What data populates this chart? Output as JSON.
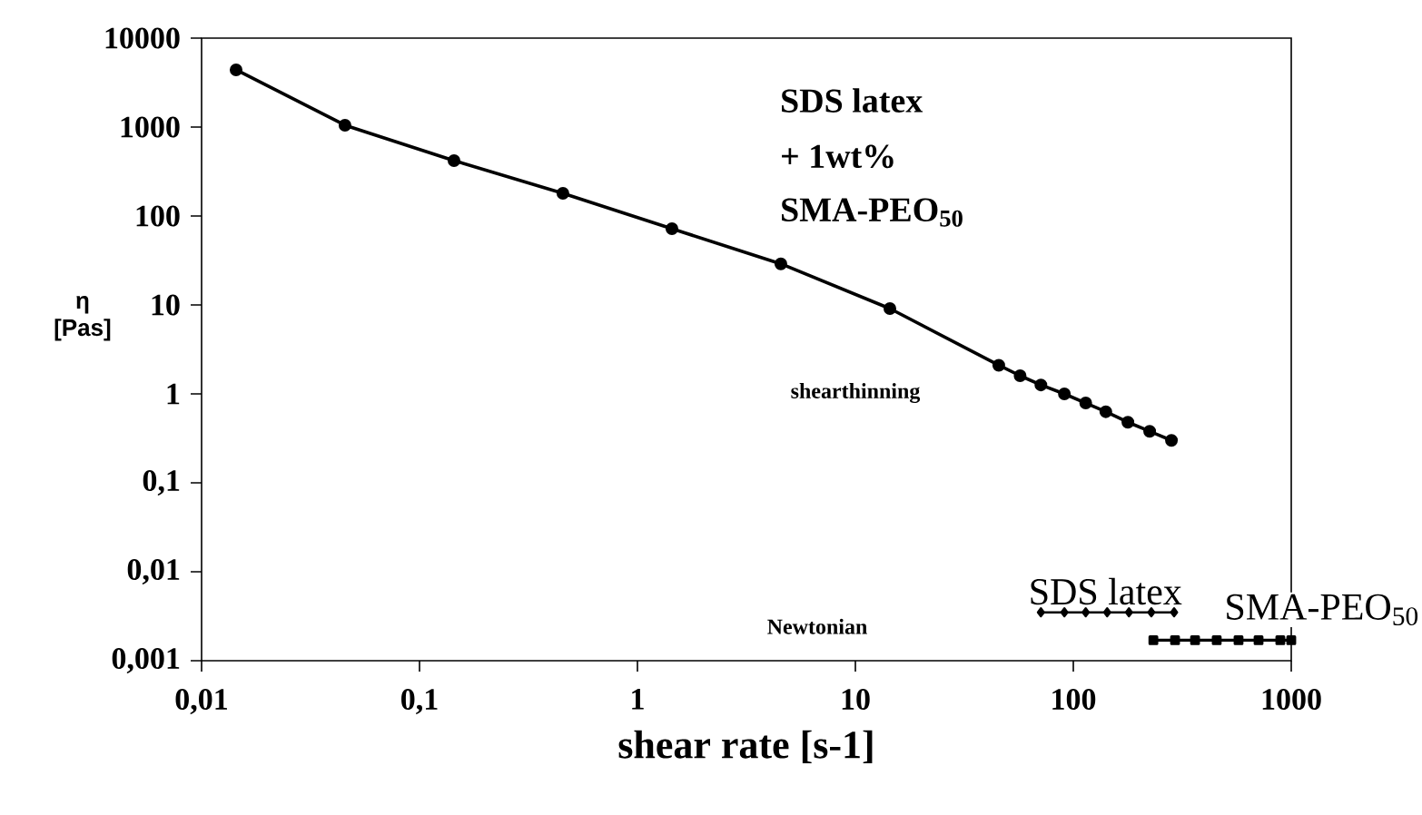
{
  "chart_data": {
    "type": "line",
    "xlabel": "shear rate [s-1]",
    "ylabel": "η [Pas]",
    "log": "xy",
    "xlim": [
      0.01,
      1000
    ],
    "ylim": [
      0.001,
      10000
    ],
    "xticks": [
      {
        "value": 0.01,
        "label": "0,01"
      },
      {
        "value": 0.1,
        "label": "0,1"
      },
      1,
      10,
      100,
      1000
    ],
    "yticks": [
      {
        "value": 0.001,
        "label": "0,001"
      },
      {
        "value": 0.01,
        "label": "0,01"
      },
      {
        "value": 0.1,
        "label": "0,1"
      },
      1,
      10,
      100,
      1000,
      10000
    ],
    "line_style": "solid",
    "series": [
      {
        "color": "#000000",
        "marker": "circle",
        "x": [
          0.0144,
          0.0455,
          0.144,
          0.455,
          1.44,
          4.55,
          14.4,
          45.5,
          57,
          71,
          91,
          114,
          141,
          178,
          224,
          282
        ],
        "values": [
          4400,
          1050,
          420,
          180,
          72,
          29,
          9.1,
          2.1,
          1.6,
          1.26,
          1.0,
          0.79,
          0.63,
          0.48,
          0.38,
          0.3
        ]
      },
      {
        "name": "SDS latex",
        "color": "#000000",
        "marker": "diamond",
        "x": [
          71,
          91,
          114,
          143,
          180,
          228,
          290
        ],
        "values": [
          0.0035,
          0.0035,
          0.0035,
          0.0035,
          0.0035,
          0.0035,
          0.0035
        ]
      },
      {
        "name": "SMA-PEO$_{50}$",
        "color": "#000000",
        "marker": "square",
        "x": [
          233,
          293,
          362,
          455,
          573,
          708,
          891,
          1000
        ],
        "values": [
          0.0017,
          0.0017,
          0.0017,
          0.0017,
          0.0017,
          0.0017,
          0.0017,
          0.0017
        ]
      }
    ],
    "annotations": [
      "SDS latex",
      "+ 1wt%",
      "SMA-PEO$_{50}$",
      "shearthinning",
      "Newtonian"
    ]
  }
}
